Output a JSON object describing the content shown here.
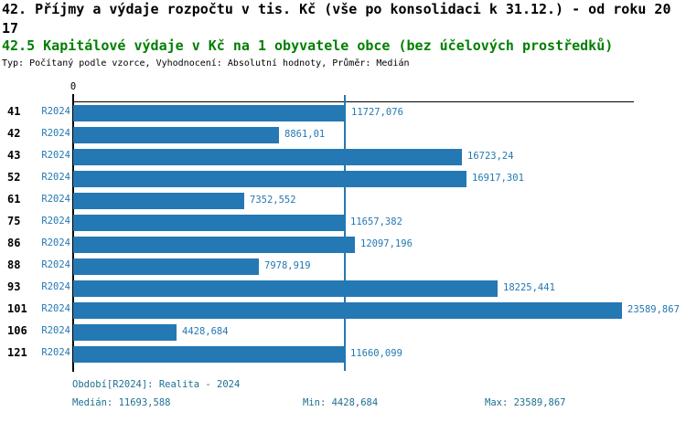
{
  "header": {
    "title_line1": "42. Příjmy a výdaje rozpočtu v tis. Kč (vše po konsolidaci k 31.12.) - od roku 20",
    "title_line1_overflow": "17",
    "title_line2": "42.5 Kapitálové výdaje v Kč na 1 obyvatele obce (bez účelových prostředků)",
    "subtitle": "Typ: Počítaný podle vzorce, Vyhodnocení: Absolutní hodnoty, Průměr: Medián"
  },
  "chart_data": {
    "type": "bar",
    "orientation": "horizontal",
    "axis_zero_label": "0",
    "period_label": "R2024",
    "categories": [
      "41",
      "42",
      "43",
      "52",
      "61",
      "75",
      "86",
      "88",
      "93",
      "101",
      "106",
      "121"
    ],
    "values": [
      11727.076,
      8861.01,
      16723.24,
      16917.301,
      7352.552,
      11657.382,
      12097.196,
      7978.919,
      18225.441,
      23589.867,
      4428.684,
      11660.099
    ],
    "value_labels": [
      "11727,076",
      "8861,01",
      "16723,24",
      "16917,301",
      "7352,552",
      "11657,382",
      "12097,196",
      "7978,919",
      "18225,441",
      "23589,867",
      "4428,684",
      "11660,099"
    ],
    "median": 11693.588,
    "xlim": [
      0,
      23589.867
    ],
    "bar_color": "#2478b4",
    "median_line_color": "#2478b4",
    "label_color": "#2478b4",
    "grid": false,
    "legend": "none"
  },
  "footer": {
    "period_info": "Období[R2024]: Realita - 2024",
    "median_label": "Medián: 11693,588",
    "min_label": "Min: 4428,684",
    "max_label": "Max: 23589,867",
    "text_color": "#1d7091"
  }
}
